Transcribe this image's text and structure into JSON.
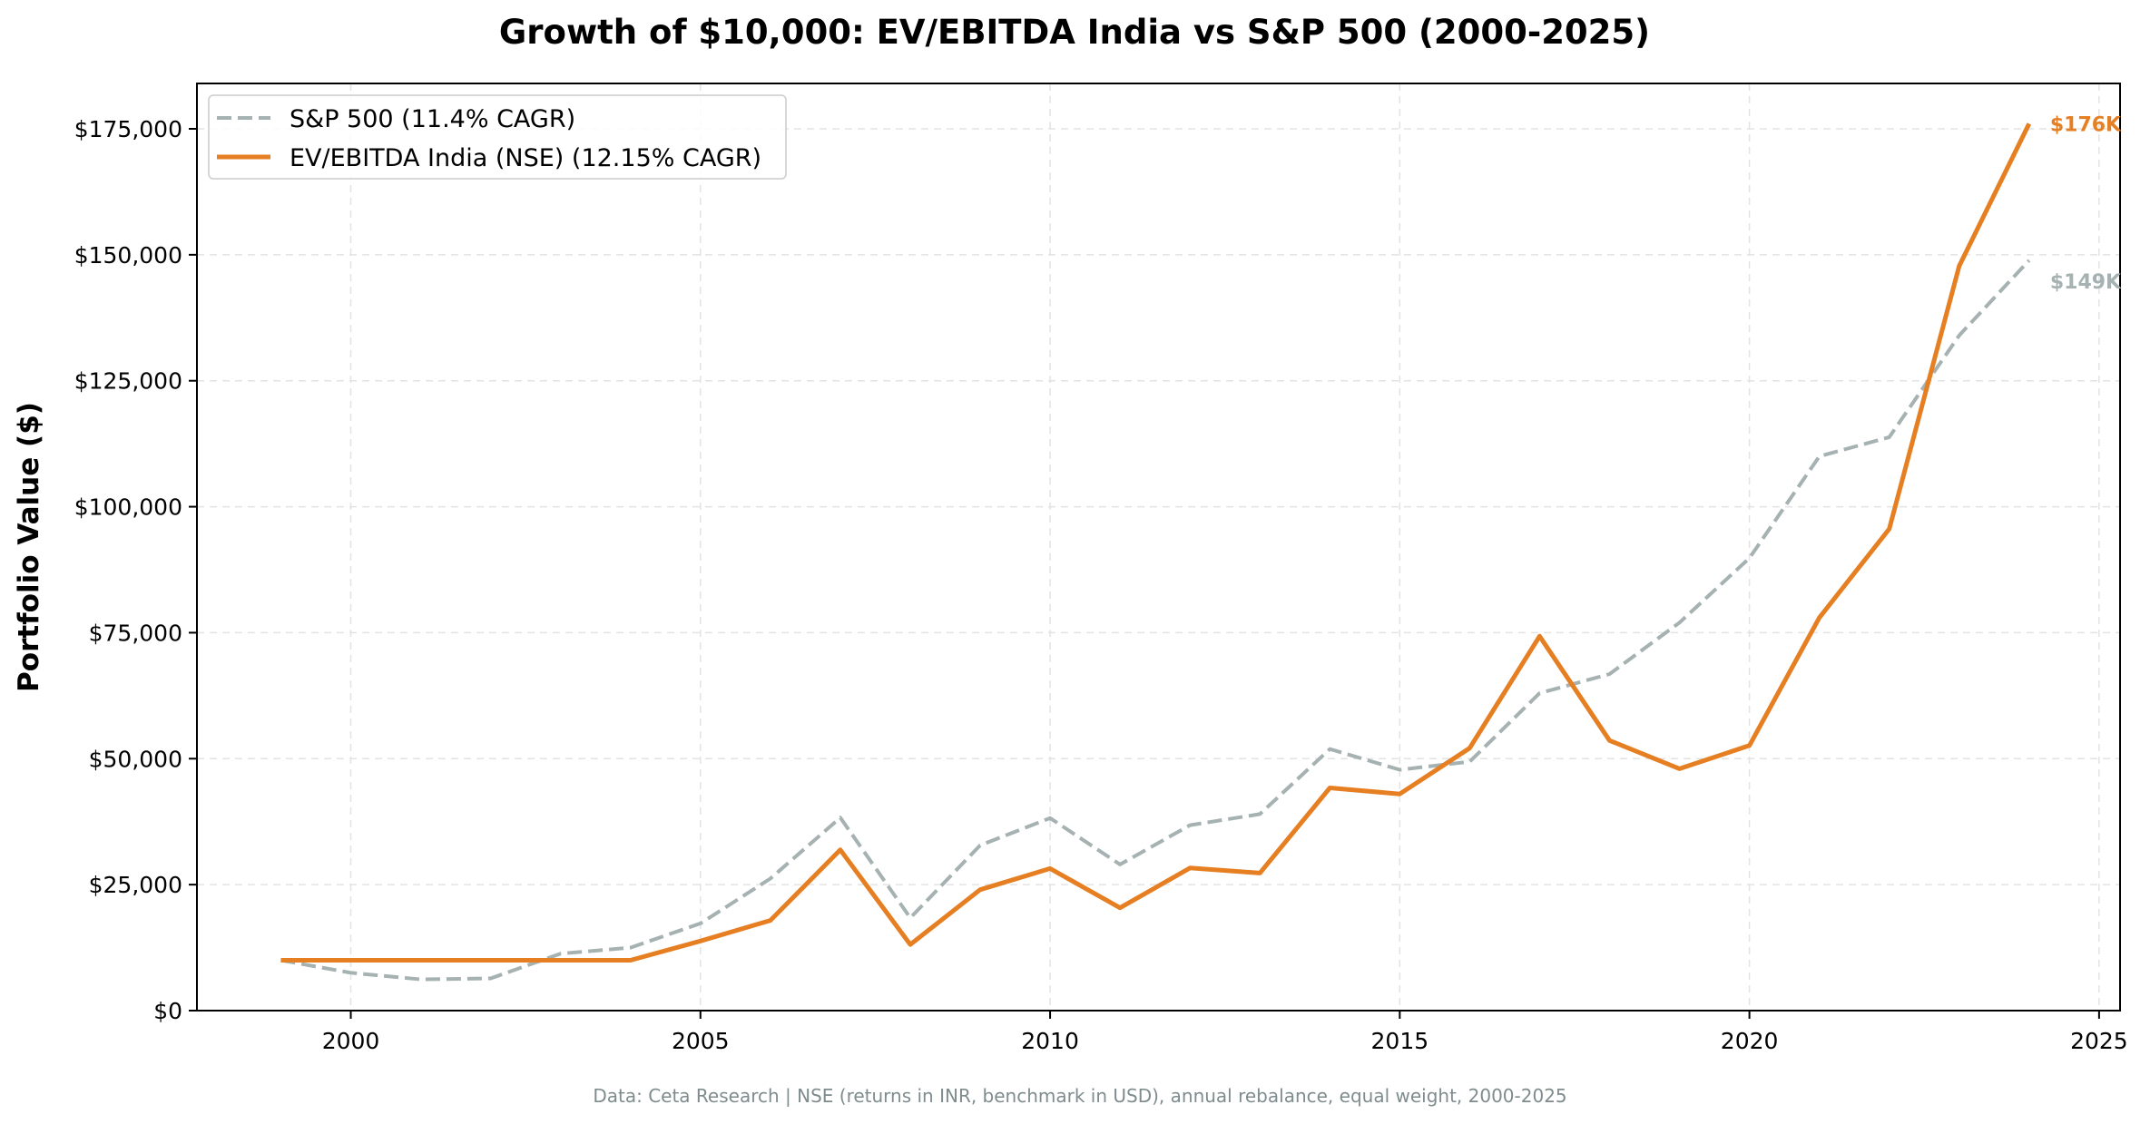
{
  "chart_data": {
    "type": "line",
    "title": "Growth of $10,000: EV/EBITDA India vs S&P 500 (2000-2025)",
    "xlabel": "",
    "ylabel": "Portfolio Value ($)",
    "footnote": "Data: Ceta Research | NSE (returns in INR, benchmark in USD), annual rebalance, equal weight, 2000-2025",
    "xlim": [
      1997.8,
      2025.3
    ],
    "ylim": [
      0,
      184000
    ],
    "x_ticks": [
      2000,
      2005,
      2010,
      2015,
      2020,
      2025
    ],
    "x_tick_labels": [
      "2000",
      "2005",
      "2010",
      "2015",
      "2020",
      "2025"
    ],
    "y_ticks": [
      0,
      25000,
      50000,
      75000,
      100000,
      125000,
      150000,
      175000
    ],
    "y_tick_labels": [
      "$0",
      "$25,000",
      "$50,000",
      "$75,000",
      "$100,000",
      "$125,000",
      "$150,000",
      "$175,000"
    ],
    "grid": true,
    "legend_position": "top-left",
    "x": [
      1999,
      2000,
      2001,
      2002,
      2003,
      2004,
      2005,
      2006,
      2007,
      2008,
      2009,
      2010,
      2011,
      2012,
      2013,
      2014,
      2015,
      2016,
      2017,
      2018,
      2019,
      2020,
      2021,
      2022,
      2023,
      2024
    ],
    "series": [
      {
        "name": "S&P 500 (11.4% CAGR)",
        "color": "#a6b1b2",
        "style": "dashed",
        "end_label": "$149K",
        "values": [
          10000,
          7500,
          6200,
          6400,
          11300,
          12500,
          17300,
          26200,
          38300,
          18400,
          32800,
          38200,
          29000,
          36800,
          39000,
          51900,
          47800,
          49400,
          63000,
          66800,
          77000,
          89800,
          110000,
          113800,
          134000,
          148900
        ]
      },
      {
        "name": "EV/EBITDA India (NSE) (12.15% CAGR)",
        "color": "#e67e22",
        "style": "solid",
        "end_label": "$176K",
        "values": [
          10000,
          10000,
          10000,
          10000,
          10000,
          10000,
          13800,
          17900,
          31900,
          13100,
          24000,
          28200,
          20400,
          28300,
          27300,
          44200,
          43000,
          52100,
          74300,
          53600,
          48000,
          52600,
          78000,
          95600,
          147800,
          176000
        ]
      }
    ]
  }
}
